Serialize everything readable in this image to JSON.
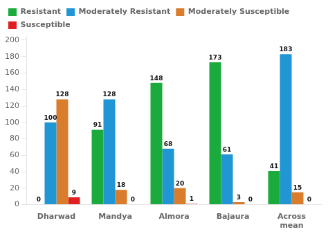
{
  "chart_data": {
    "type": "bar",
    "categories": [
      "Dharwad",
      "Mandya",
      "Almora",
      "Bajaura",
      "Across\nmean"
    ],
    "series": [
      {
        "name": "Resistant",
        "color": "#1aab3c",
        "values": [
          0,
          91,
          148,
          173,
          41
        ]
      },
      {
        "name": "Moderately Resistant",
        "color": "#2196d4",
        "values": [
          100,
          128,
          68,
          61,
          183
        ]
      },
      {
        "name": "Moderately Susceptible",
        "color": "#d97c2b",
        "values": [
          128,
          18,
          20,
          3,
          15
        ]
      },
      {
        "name": "Susceptible",
        "color": "#e02020",
        "values": [
          9,
          0,
          1,
          0,
          0
        ]
      }
    ],
    "ylim": [
      0,
      205
    ],
    "yticks": [
      0,
      20,
      40,
      60,
      80,
      100,
      120,
      140,
      160,
      180,
      200
    ],
    "grid": false,
    "legend": "top",
    "data_labels": true
  }
}
